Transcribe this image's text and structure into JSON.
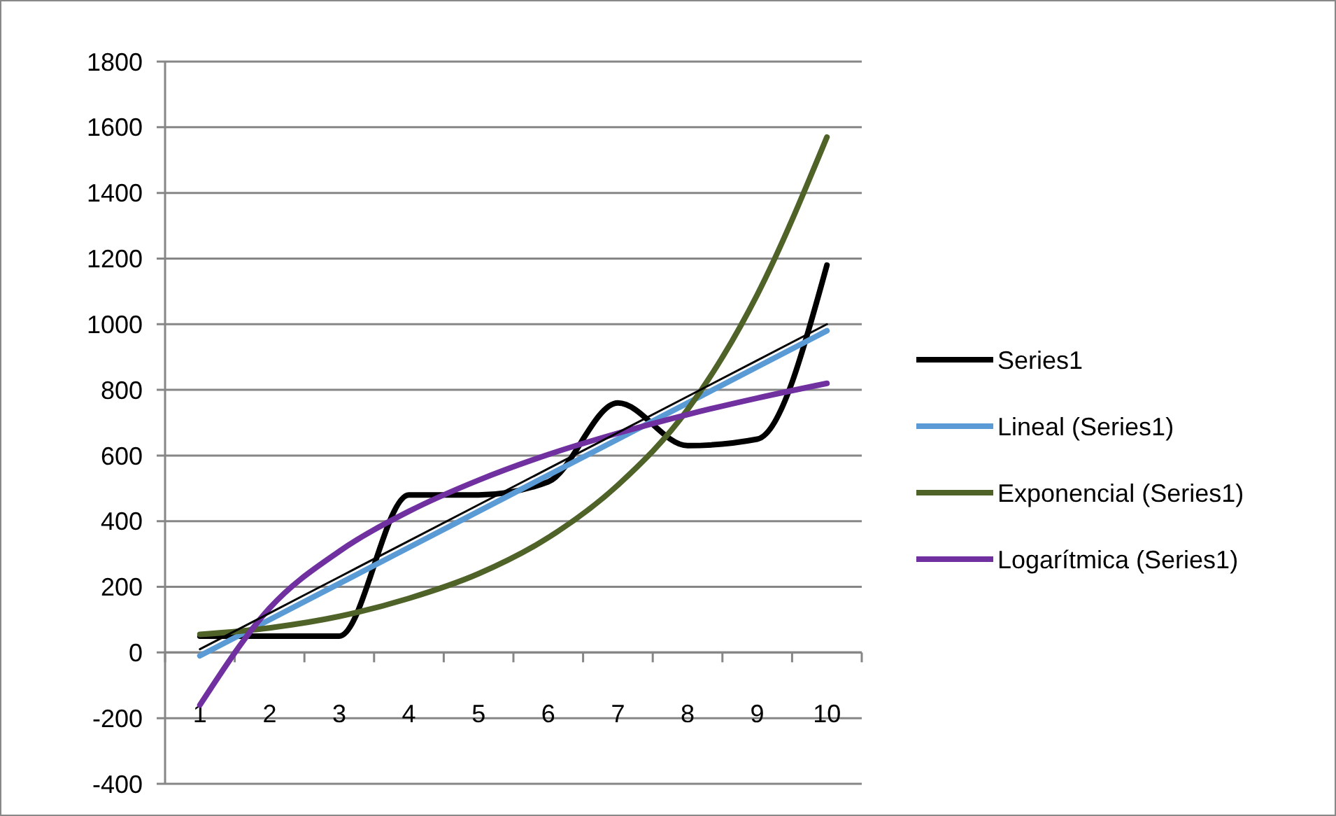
{
  "chart_data": {
    "type": "line",
    "categories": [
      "1",
      "2",
      "3",
      "4",
      "5",
      "6",
      "7",
      "8",
      "9",
      "10"
    ],
    "series": [
      {
        "name": "Series1",
        "color": "#000000",
        "values": [
          50,
          50,
          50,
          480,
          480,
          520,
          760,
          630,
          650,
          1180
        ]
      },
      {
        "name": "Lineal (Series1)",
        "color": "#5b9bd5",
        "values": [
          -10,
          100,
          210,
          320,
          430,
          540,
          650,
          760,
          870,
          980
        ]
      },
      {
        "name": "Exponencial (Series1)",
        "color": "#4f6228",
        "values": [
          55,
          75,
          110,
          165,
          240,
          350,
          510,
          740,
          1090,
          1570
        ]
      },
      {
        "name": "Logarítmica (Series1)",
        "color": "#7030a0",
        "values": [
          -160,
          135,
          308,
          430,
          525,
          603,
          668,
          725,
          775,
          820
        ]
      },
      {
        "color": "#000000",
        "values": [
          10,
          120,
          230,
          340,
          450,
          560,
          670,
          780,
          890,
          1000
        ]
      }
    ],
    "ylim": [
      -400,
      1800
    ],
    "yticks": [
      -400,
      -200,
      0,
      200,
      400,
      600,
      800,
      1000,
      1200,
      1400,
      1600,
      1800
    ],
    "grid": "y",
    "legend": "right",
    "marker": "none",
    "line_style": "solid"
  }
}
